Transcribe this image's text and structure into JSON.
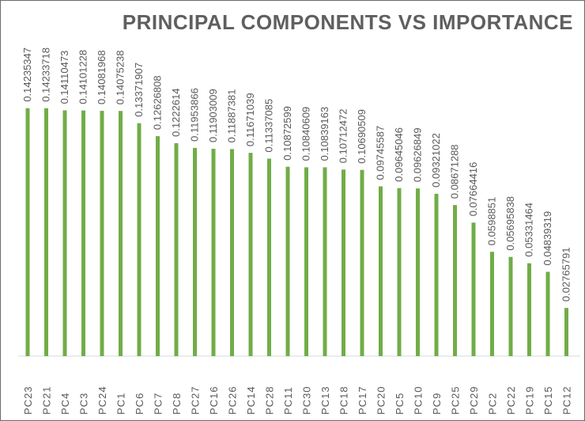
{
  "chart_data": {
    "type": "bar",
    "title": "PRINCIPAL COMPONENTS VS IMPORTANCE",
    "xlabel": "",
    "ylabel": "",
    "categories": [
      "PC23",
      "PC21",
      "PC4",
      "PC3",
      "PC24",
      "PC1",
      "PC6",
      "PC7",
      "PC8",
      "PC27",
      "PC16",
      "PC26",
      "PC14",
      "PC28",
      "PC11",
      "PC30",
      "PC13",
      "PC18",
      "PC17",
      "PC20",
      "PC5",
      "PC10",
      "PC9",
      "PC25",
      "PC29",
      "PC2",
      "PC22",
      "PC19",
      "PC15",
      "PC12"
    ],
    "values": [
      0.14235347,
      0.14233718,
      0.14110473,
      0.14101228,
      0.14081968,
      0.14075238,
      0.13371907,
      0.12626808,
      0.1222614,
      0.11953866,
      0.11903009,
      0.11887381,
      0.11671039,
      0.11337085,
      0.10872599,
      0.10840609,
      0.10839163,
      0.10712472,
      0.10690509,
      0.09745587,
      0.09645046,
      0.09626849,
      0.09321022,
      0.08671288,
      0.07664416,
      0.0598851,
      0.05695838,
      0.05331464,
      0.04839319,
      0.02765791
    ],
    "value_labels": [
      "0.14235347",
      "0.14233718",
      "0.14110473",
      "0.14101228",
      "0.14081968",
      "0.14075238",
      "0.13371907",
      "0.12626808",
      "0.1222614",
      "0.11953866",
      "0.11903009",
      "0.11887381",
      "0.11671039",
      "0.11337085",
      "0.10872599",
      "0.10840609",
      "0.10839163",
      "0.10712472",
      "0.10690509",
      "0.09745587",
      "0.09645046",
      "0.09626849",
      "0.09321022",
      "0.08671288",
      "0.07664416",
      "0.0598851",
      "0.05695838",
      "0.05331464",
      "0.04839319",
      "0.02765791"
    ],
    "ylim": [
      0,
      0.204
    ],
    "bar_color": "#70ad47",
    "grid": false,
    "legend": "none"
  }
}
